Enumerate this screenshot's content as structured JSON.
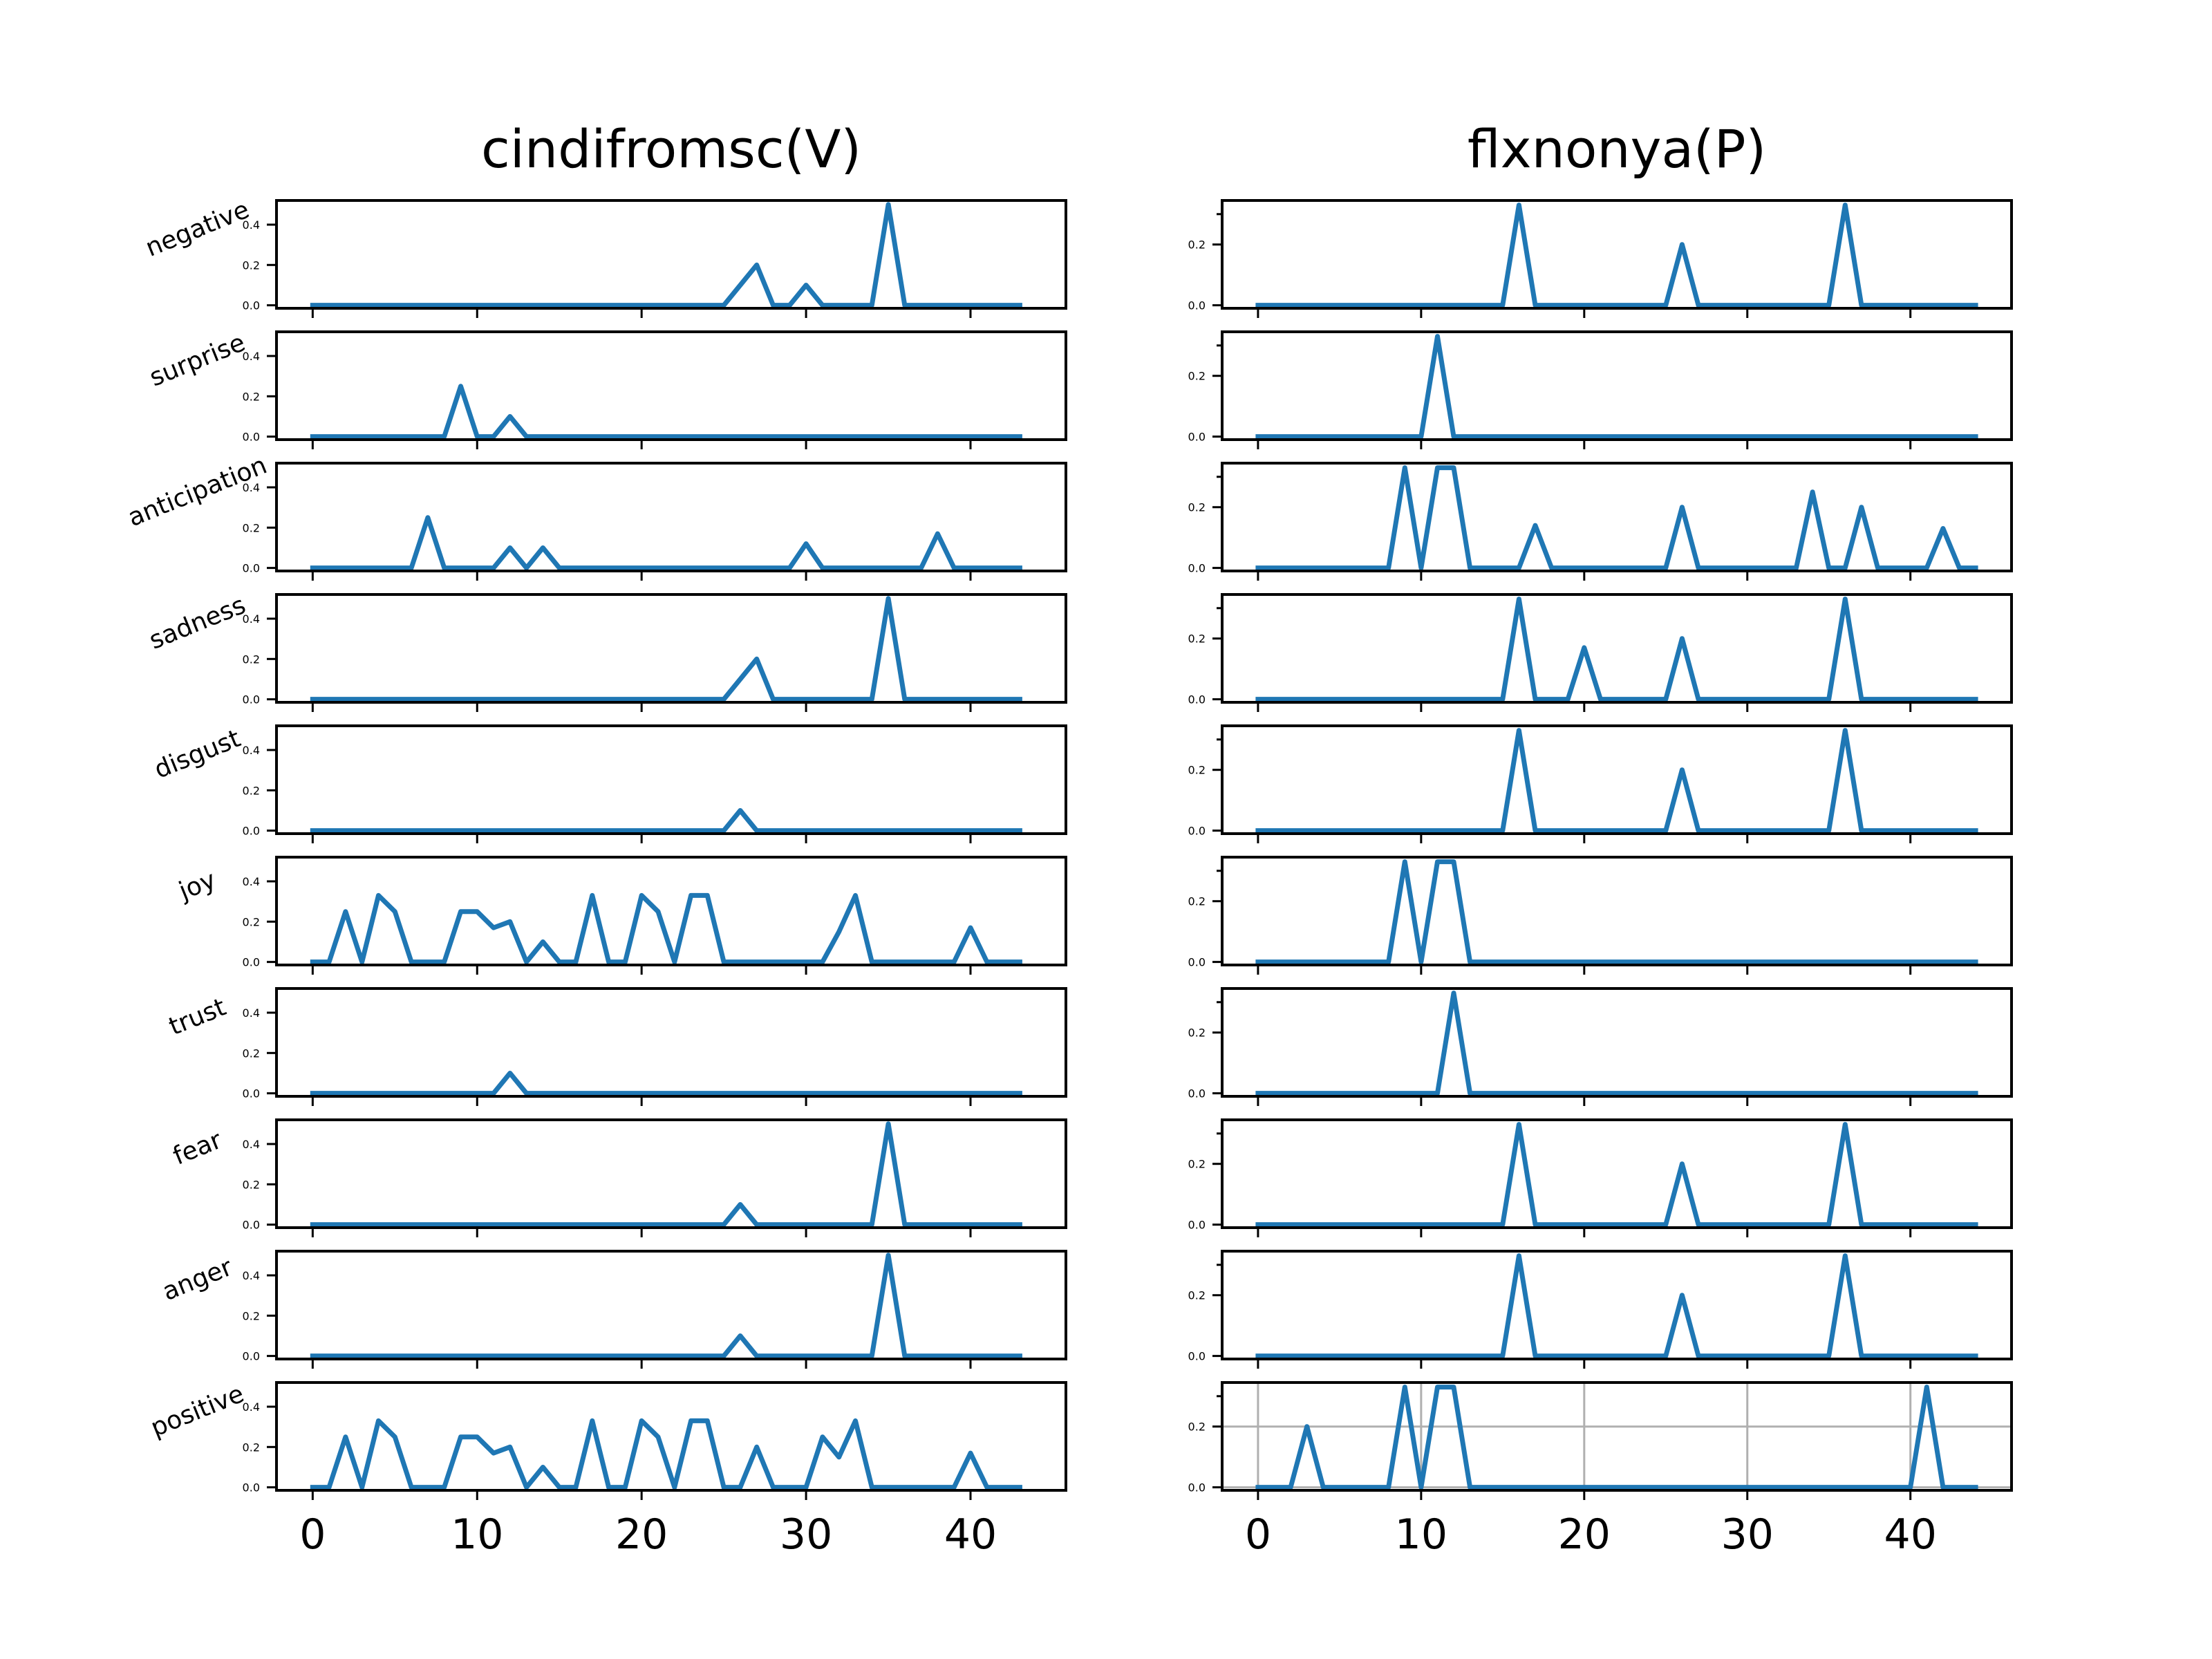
{
  "chart_data": {
    "type": "line",
    "line_color": "#1f77b4",
    "grid_color": "#b0b0b0",
    "emotions": [
      "negative",
      "surprise",
      "anticipation",
      "sadness",
      "disgust",
      "joy",
      "trust",
      "fear",
      "anger",
      "positive"
    ],
    "panels": [
      {
        "title": "cindifromsc(V)",
        "x_start": 0,
        "xlim": [
          -2.2,
          45.8
        ],
        "xticks": [
          0,
          10,
          20,
          30,
          40
        ],
        "xtick_labels": [
          "0",
          "10",
          "20",
          "30",
          "40"
        ],
        "ylim": [
          -0.015,
          0.52
        ],
        "yticks": [
          0.0,
          0.2,
          0.4
        ],
        "ytick_labels": [
          "0.0",
          "0.2",
          "0.4"
        ],
        "series": [
          {
            "values": [
              0,
              0,
              0,
              0,
              0,
              0,
              0,
              0,
              0,
              0,
              0,
              0,
              0,
              0,
              0,
              0,
              0,
              0,
              0,
              0,
              0,
              0,
              0,
              0,
              0,
              0,
              0.1,
              0.2,
              0,
              0,
              0.1,
              0,
              0,
              0,
              0,
              0.5,
              0,
              0,
              0,
              0,
              0,
              0,
              0,
              0
            ]
          },
          {
            "values": [
              0,
              0,
              0,
              0,
              0,
              0,
              0,
              0,
              0,
              0.25,
              0,
              0,
              0.1,
              0,
              0,
              0,
              0,
              0,
              0,
              0,
              0,
              0,
              0,
              0,
              0,
              0,
              0,
              0,
              0,
              0,
              0,
              0,
              0,
              0,
              0,
              0,
              0,
              0,
              0,
              0,
              0,
              0,
              0,
              0
            ]
          },
          {
            "values": [
              0,
              0,
              0,
              0,
              0,
              0,
              0,
              0.25,
              0,
              0,
              0,
              0,
              0.1,
              0,
              0.1,
              0,
              0,
              0,
              0,
              0,
              0,
              0,
              0,
              0,
              0,
              0,
              0,
              0,
              0,
              0,
              0.12,
              0,
              0,
              0,
              0,
              0,
              0,
              0,
              0.17,
              0,
              0,
              0,
              0,
              0
            ]
          },
          {
            "values": [
              0,
              0,
              0,
              0,
              0,
              0,
              0,
              0,
              0,
              0,
              0,
              0,
              0,
              0,
              0,
              0,
              0,
              0,
              0,
              0,
              0,
              0,
              0,
              0,
              0,
              0,
              0.1,
              0.2,
              0,
              0,
              0,
              0,
              0,
              0,
              0,
              0.5,
              0,
              0,
              0,
              0,
              0,
              0,
              0,
              0
            ]
          },
          {
            "values": [
              0,
              0,
              0,
              0,
              0,
              0,
              0,
              0,
              0,
              0,
              0,
              0,
              0,
              0,
              0,
              0,
              0,
              0,
              0,
              0,
              0,
              0,
              0,
              0,
              0,
              0,
              0.1,
              0,
              0,
              0,
              0,
              0,
              0,
              0,
              0,
              0,
              0,
              0,
              0,
              0,
              0,
              0,
              0,
              0
            ]
          },
          {
            "values": [
              0,
              0,
              0.25,
              0,
              0.33,
              0.25,
              0,
              0,
              0,
              0.25,
              0.25,
              0.17,
              0.2,
              0,
              0.1,
              0,
              0,
              0.33,
              0,
              0,
              0.33,
              0.25,
              0,
              0.33,
              0.33,
              0,
              0,
              0,
              0,
              0,
              0,
              0,
              0.15,
              0.33,
              0,
              0,
              0,
              0,
              0,
              0,
              0.17,
              0,
              0,
              0
            ]
          },
          {
            "values": [
              0,
              0,
              0,
              0,
              0,
              0,
              0,
              0,
              0,
              0,
              0,
              0,
              0.1,
              0,
              0,
              0,
              0,
              0,
              0,
              0,
              0,
              0,
              0,
              0,
              0,
              0,
              0,
              0,
              0,
              0,
              0,
              0,
              0,
              0,
              0,
              0,
              0,
              0,
              0,
              0,
              0,
              0,
              0,
              0
            ]
          },
          {
            "values": [
              0,
              0,
              0,
              0,
              0,
              0,
              0,
              0,
              0,
              0,
              0,
              0,
              0,
              0,
              0,
              0,
              0,
              0,
              0,
              0,
              0,
              0,
              0,
              0,
              0,
              0,
              0.1,
              0,
              0,
              0,
              0,
              0,
              0,
              0,
              0,
              0.5,
              0,
              0,
              0,
              0,
              0,
              0,
              0,
              0
            ]
          },
          {
            "values": [
              0,
              0,
              0,
              0,
              0,
              0,
              0,
              0,
              0,
              0,
              0,
              0,
              0,
              0,
              0,
              0,
              0,
              0,
              0,
              0,
              0,
              0,
              0,
              0,
              0,
              0,
              0.1,
              0,
              0,
              0,
              0,
              0,
              0,
              0,
              0,
              0.5,
              0,
              0,
              0,
              0,
              0,
              0,
              0,
              0
            ]
          },
          {
            "values": [
              0,
              0,
              0.25,
              0,
              0.33,
              0.25,
              0,
              0,
              0,
              0.25,
              0.25,
              0.17,
              0.2,
              0,
              0.1,
              0,
              0,
              0.33,
              0,
              0,
              0.33,
              0.25,
              0,
              0.33,
              0.33,
              0,
              0,
              0.2,
              0,
              0,
              0,
              0.25,
              0.15,
              0.33,
              0,
              0,
              0,
              0,
              0,
              0,
              0.17,
              0,
              0,
              0
            ]
          }
        ]
      },
      {
        "title": "flxnonya(P)",
        "x_start": 0,
        "xlim": [
          -2.2,
          46.2
        ],
        "xticks": [
          0,
          10,
          20,
          30,
          40
        ],
        "xtick_labels": [
          "0",
          "10",
          "20",
          "30",
          "40"
        ],
        "ylim": [
          -0.01,
          0.345
        ],
        "yticks": [
          0.0,
          0.2
        ],
        "ytick_labels": [
          "0.0",
          "0.2"
        ],
        "minor_yticks": [
          0.3
        ],
        "series": [
          {
            "values": [
              0,
              0,
              0,
              0,
              0,
              0,
              0,
              0,
              0,
              0,
              0,
              0,
              0,
              0,
              0,
              0,
              0.33,
              0,
              0,
              0,
              0,
              0,
              0,
              0,
              0,
              0,
              0.2,
              0,
              0,
              0,
              0,
              0,
              0,
              0,
              0,
              0,
              0.33,
              0,
              0,
              0,
              0,
              0,
              0,
              0,
              0
            ]
          },
          {
            "values": [
              0,
              0,
              0,
              0,
              0,
              0,
              0,
              0,
              0,
              0,
              0,
              0.33,
              0,
              0,
              0,
              0,
              0,
              0,
              0,
              0,
              0,
              0,
              0,
              0,
              0,
              0,
              0,
              0,
              0,
              0,
              0,
              0,
              0,
              0,
              0,
              0,
              0,
              0,
              0,
              0,
              0,
              0,
              0,
              0,
              0
            ]
          },
          {
            "values": [
              0,
              0,
              0,
              0,
              0,
              0,
              0,
              0,
              0,
              0.33,
              0,
              0.33,
              0.33,
              0,
              0,
              0,
              0,
              0.14,
              0,
              0,
              0,
              0,
              0,
              0,
              0,
              0,
              0.2,
              0,
              0,
              0,
              0,
              0,
              0,
              0,
              0.25,
              0,
              0,
              0.2,
              0,
              0,
              0,
              0,
              0.13,
              0,
              0
            ]
          },
          {
            "values": [
              0,
              0,
              0,
              0,
              0,
              0,
              0,
              0,
              0,
              0,
              0,
              0,
              0,
              0,
              0,
              0,
              0.33,
              0,
              0,
              0,
              0.17,
              0,
              0,
              0,
              0,
              0,
              0.2,
              0,
              0,
              0,
              0,
              0,
              0,
              0,
              0,
              0,
              0.33,
              0,
              0,
              0,
              0,
              0,
              0,
              0,
              0
            ]
          },
          {
            "values": [
              0,
              0,
              0,
              0,
              0,
              0,
              0,
              0,
              0,
              0,
              0,
              0,
              0,
              0,
              0,
              0,
              0.33,
              0,
              0,
              0,
              0,
              0,
              0,
              0,
              0,
              0,
              0.2,
              0,
              0,
              0,
              0,
              0,
              0,
              0,
              0,
              0,
              0.33,
              0,
              0,
              0,
              0,
              0,
              0,
              0,
              0
            ]
          },
          {
            "values": [
              0,
              0,
              0,
              0,
              0,
              0,
              0,
              0,
              0,
              0.33,
              0,
              0.33,
              0.33,
              0,
              0,
              0,
              0,
              0,
              0,
              0,
              0,
              0,
              0,
              0,
              0,
              0,
              0,
              0,
              0,
              0,
              0,
              0,
              0,
              0,
              0,
              0,
              0,
              0,
              0,
              0,
              0,
              0,
              0,
              0,
              0
            ]
          },
          {
            "values": [
              0,
              0,
              0,
              0,
              0,
              0,
              0,
              0,
              0,
              0,
              0,
              0,
              0.33,
              0,
              0,
              0,
              0,
              0,
              0,
              0,
              0,
              0,
              0,
              0,
              0,
              0,
              0,
              0,
              0,
              0,
              0,
              0,
              0,
              0,
              0,
              0,
              0,
              0,
              0,
              0,
              0,
              0,
              0,
              0,
              0
            ]
          },
          {
            "values": [
              0,
              0,
              0,
              0,
              0,
              0,
              0,
              0,
              0,
              0,
              0,
              0,
              0,
              0,
              0,
              0,
              0.33,
              0,
              0,
              0,
              0,
              0,
              0,
              0,
              0,
              0,
              0.2,
              0,
              0,
              0,
              0,
              0,
              0,
              0,
              0,
              0,
              0.33,
              0,
              0,
              0,
              0,
              0,
              0,
              0,
              0
            ]
          },
          {
            "values": [
              0,
              0,
              0,
              0,
              0,
              0,
              0,
              0,
              0,
              0,
              0,
              0,
              0,
              0,
              0,
              0,
              0.33,
              0,
              0,
              0,
              0,
              0,
              0,
              0,
              0,
              0,
              0.2,
              0,
              0,
              0,
              0,
              0,
              0,
              0,
              0,
              0,
              0.33,
              0,
              0,
              0,
              0,
              0,
              0,
              0,
              0
            ]
          },
          {
            "values": [
              0,
              0,
              0,
              0.2,
              0,
              0,
              0,
              0,
              0,
              0.33,
              0,
              0.33,
              0.33,
              0,
              0,
              0,
              0,
              0,
              0,
              0,
              0,
              0,
              0,
              0,
              0,
              0,
              0,
              0,
              0,
              0,
              0,
              0,
              0,
              0,
              0,
              0,
              0,
              0,
              0,
              0,
              0,
              0.33,
              0,
              0,
              0
            ],
            "grid": true
          }
        ]
      }
    ]
  }
}
